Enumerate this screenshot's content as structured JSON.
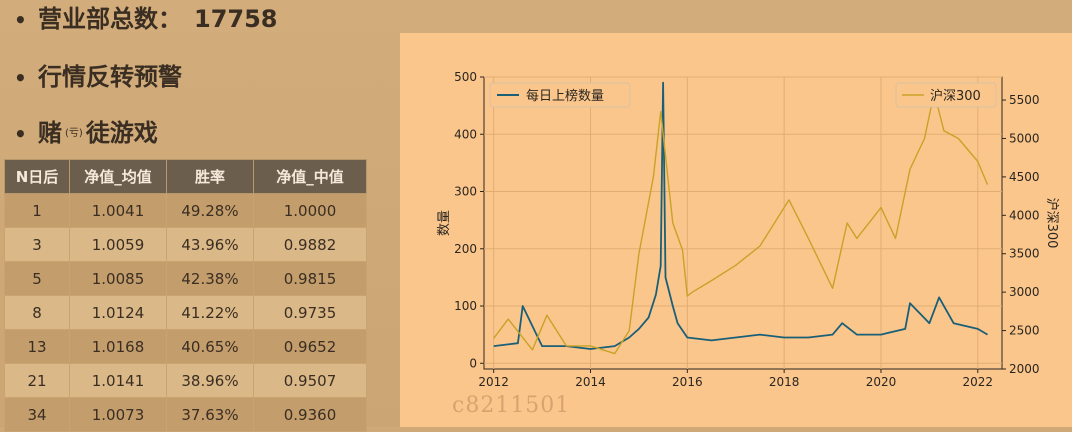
{
  "bullets": [
    {
      "text": "营业部总数：",
      "extra": "17758"
    },
    {
      "text": "行情反转预警"
    },
    {
      "text_a": "赌",
      "small": "(亏)",
      "text_b": "徒游戏"
    }
  ],
  "table": {
    "headers": [
      "N日后",
      "净值_均值",
      "胜率",
      "净值_中值"
    ],
    "rows": [
      [
        "1",
        "1.0041",
        "49.28%",
        "1.0000"
      ],
      [
        "3",
        "1.0059",
        "43.96%",
        "0.9882"
      ],
      [
        "5",
        "1.0085",
        "42.38%",
        "0.9815"
      ],
      [
        "8",
        "1.0124",
        "41.22%",
        "0.9735"
      ],
      [
        "13",
        "1.0168",
        "40.65%",
        "0.9652"
      ],
      [
        "21",
        "1.0141",
        "38.96%",
        "0.9507"
      ],
      [
        "34",
        "1.0073",
        "37.63%",
        "0.9360"
      ]
    ]
  },
  "watermark": "c8211501",
  "chart_data": {
    "type": "line",
    "title": "",
    "xlabel": "",
    "ylabel": "数量",
    "ylabel_right": "沪深300",
    "xlim": [
      2011.8,
      2022.5
    ],
    "ylim": [
      -10,
      500
    ],
    "ylim_right": [
      2000,
      5800
    ],
    "xticks": [
      "2012",
      "2014",
      "2016",
      "2018",
      "2020",
      "2022"
    ],
    "yticks": [
      "0",
      "100",
      "200",
      "300",
      "400",
      "500"
    ],
    "yticks_right": [
      "2000",
      "2500",
      "3000",
      "3500",
      "4000",
      "4500",
      "5000",
      "5500"
    ],
    "grid": true,
    "series": [
      {
        "name": "每日上榜数量",
        "axis": "left",
        "color": "#1a5f78",
        "legend": "upper left",
        "x": [
          2012.0,
          2012.5,
          2012.6,
          2013.0,
          2013.5,
          2014.0,
          2014.5,
          2014.8,
          2015.0,
          2015.2,
          2015.35,
          2015.45,
          2015.5,
          2015.55,
          2015.7,
          2015.8,
          2016.0,
          2016.5,
          2017.0,
          2017.5,
          2018.0,
          2018.5,
          2019.0,
          2019.2,
          2019.5,
          2020.0,
          2020.5,
          2020.6,
          2021.0,
          2021.2,
          2021.5,
          2022.0,
          2022.2
        ],
        "values": [
          30,
          35,
          100,
          30,
          30,
          25,
          30,
          45,
          60,
          80,
          120,
          170,
          490,
          150,
          100,
          70,
          45,
          40,
          45,
          50,
          45,
          45,
          50,
          70,
          50,
          50,
          60,
          105,
          70,
          115,
          70,
          60,
          50
        ]
      },
      {
        "name": "沪深300",
        "axis": "right",
        "color": "#c9a227",
        "legend": "upper right",
        "x": [
          2012.0,
          2012.3,
          2012.8,
          2013.1,
          2013.5,
          2014.0,
          2014.5,
          2014.8,
          2015.0,
          2015.3,
          2015.45,
          2015.7,
          2015.9,
          2016.0,
          2016.1,
          2016.5,
          2017.0,
          2017.5,
          2018.0,
          2018.1,
          2018.5,
          2019.0,
          2019.3,
          2019.5,
          2020.0,
          2020.3,
          2020.6,
          2020.9,
          2021.1,
          2021.3,
          2021.6,
          2022.0,
          2022.2
        ],
        "values": [
          2400,
          2650,
          2250,
          2700,
          2300,
          2300,
          2200,
          2500,
          3500,
          4500,
          5350,
          3900,
          3550,
          2950,
          3000,
          3150,
          3350,
          3600,
          4100,
          4200,
          3700,
          3050,
          3900,
          3700,
          4100,
          3700,
          4600,
          5000,
          5600,
          5100,
          5000,
          4700,
          4400
        ]
      }
    ]
  }
}
